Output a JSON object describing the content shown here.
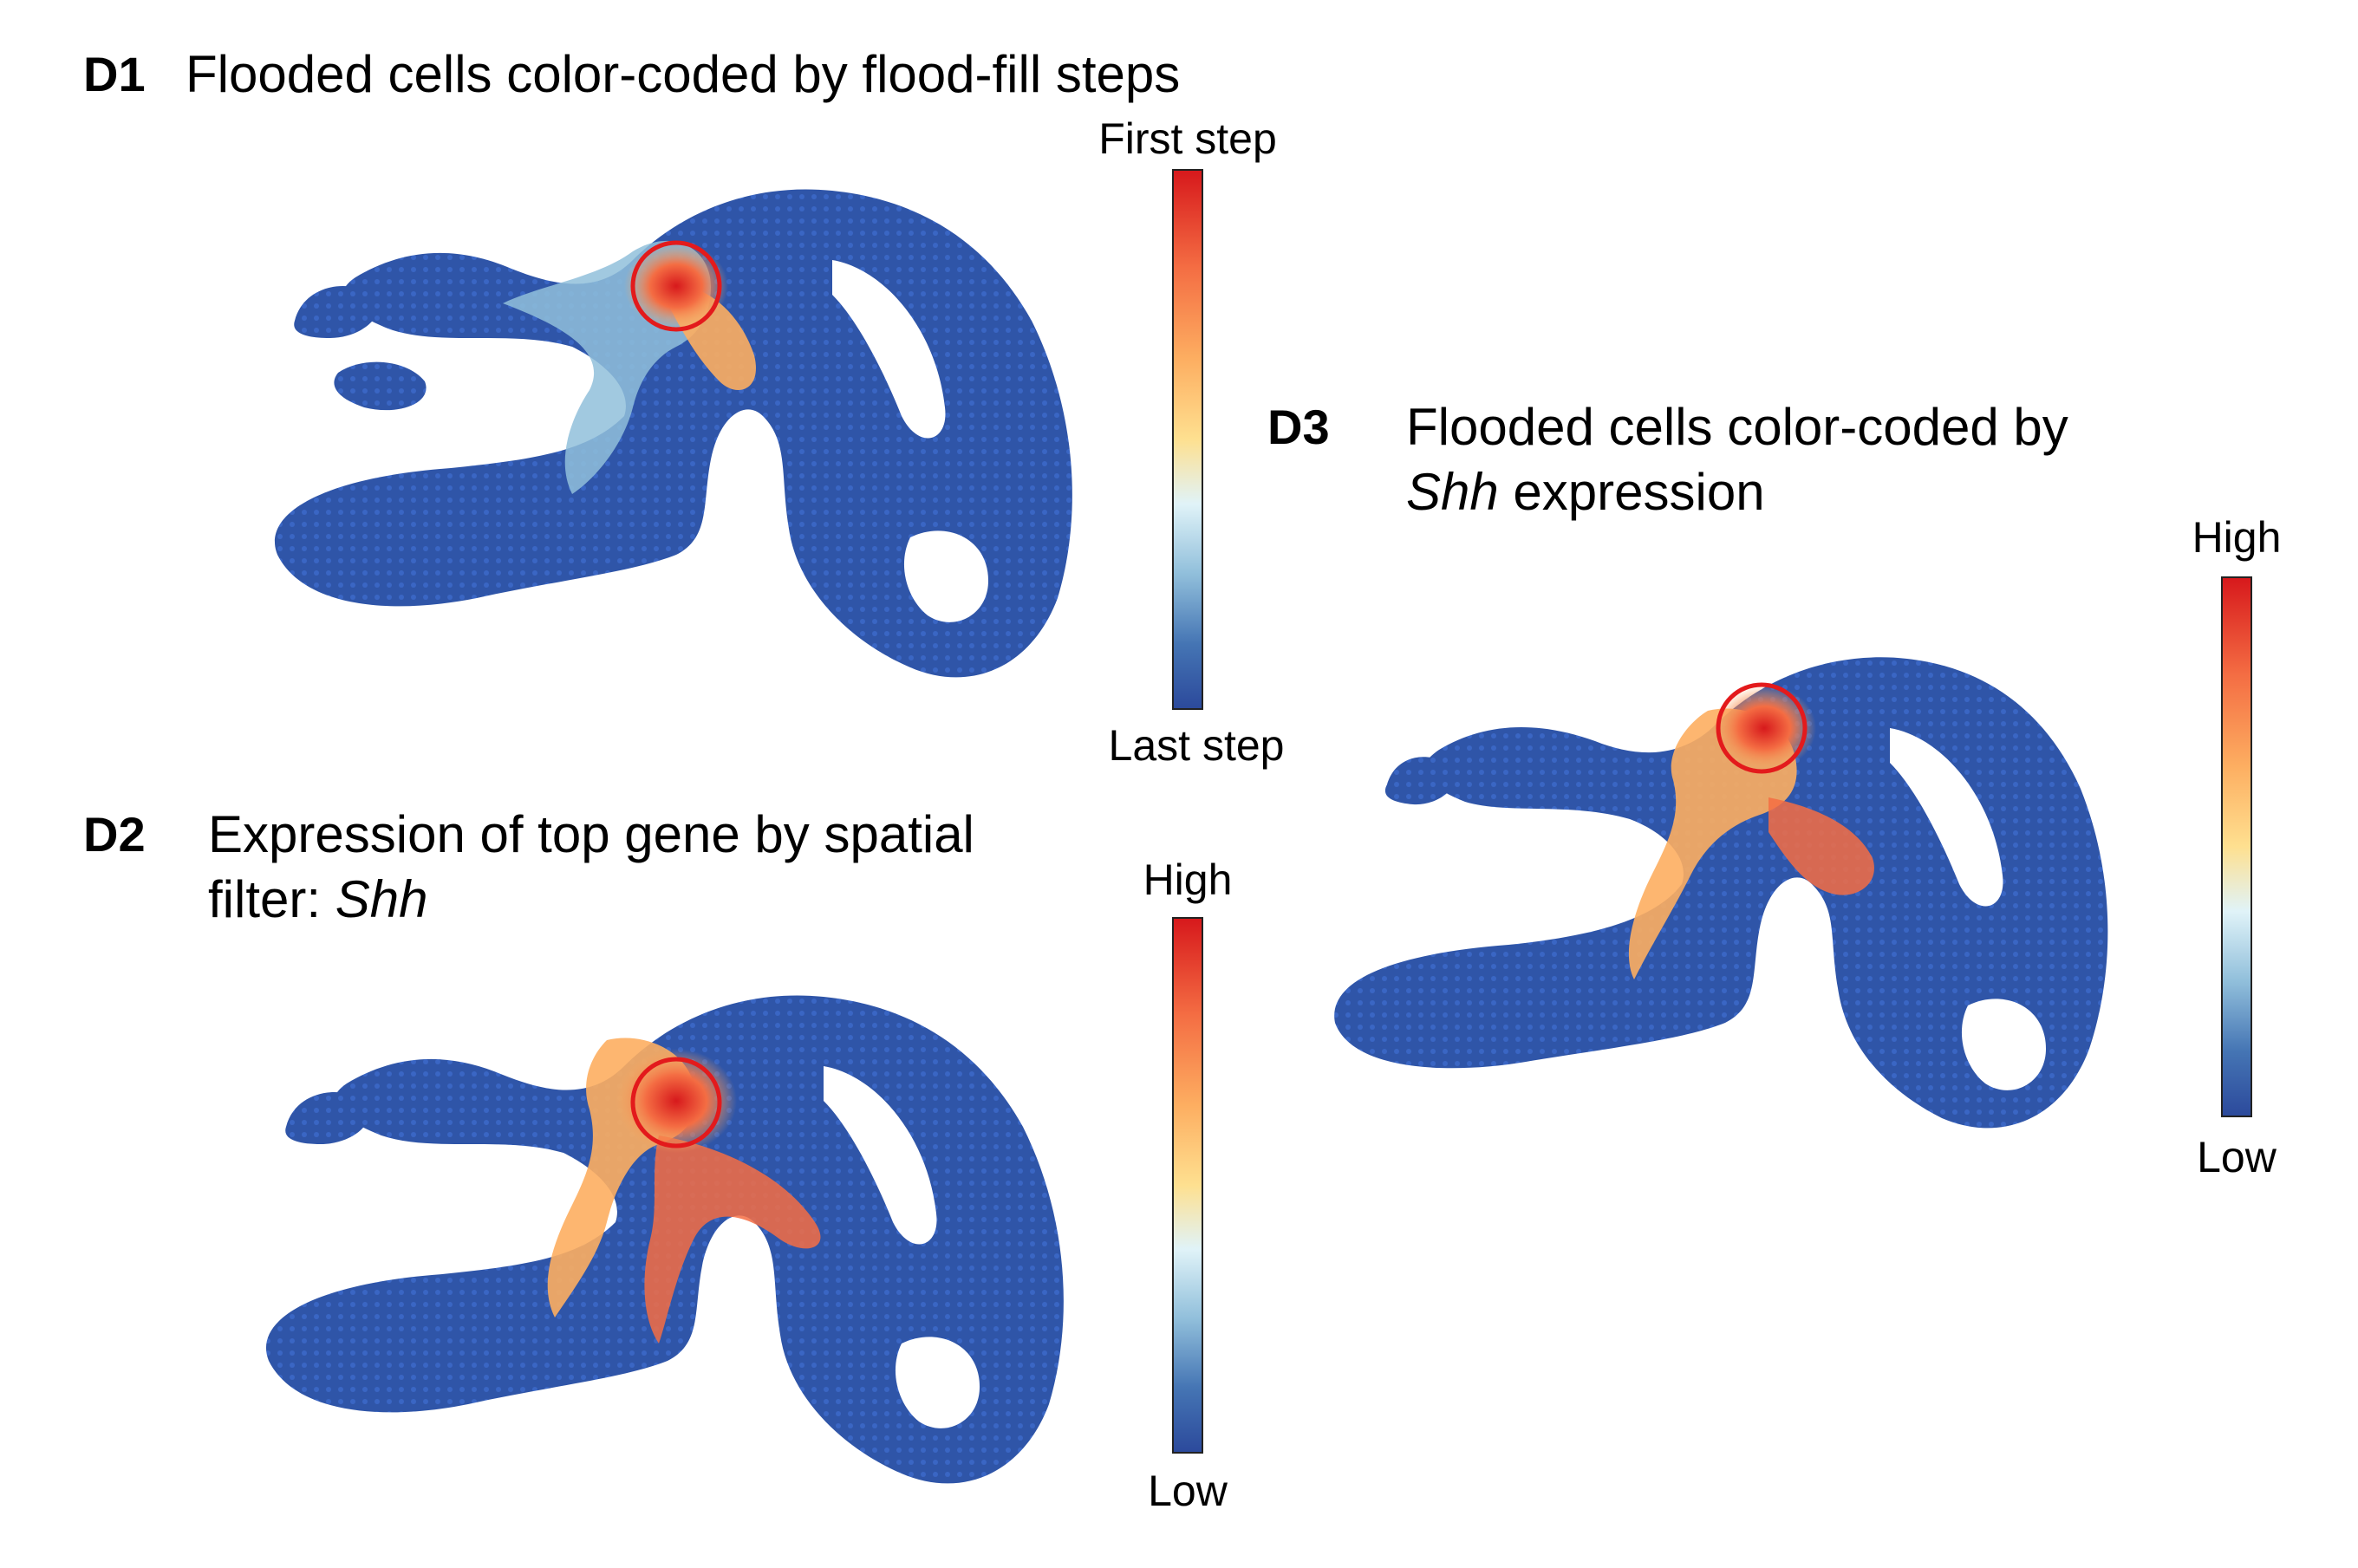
{
  "figure": {
    "colors": {
      "base": "#2f55a8",
      "dot_hi": "#3a66c4",
      "roi_circle": "#e31a1c",
      "high": "#d7191c",
      "mid": "#fee090",
      "low": "#2c4a9c"
    },
    "panels": [
      {
        "id": "D1",
        "label": "D1",
        "title_line1": "Flooded cells color-coded by flood-fill steps",
        "colorbar": {
          "top": "First step",
          "bottom": "Last step"
        }
      },
      {
        "id": "D2",
        "label": "D2",
        "title_line1": "Expression of top gene by spatial",
        "title_line2_prefix": "filter: ",
        "title_line2_italic": "Shh",
        "colorbar": {
          "top": "High",
          "bottom": "Low"
        }
      },
      {
        "id": "D3",
        "label": "D3",
        "title_line1": "Flooded cells color-coded by",
        "title_line2_italic": "Shh",
        "title_line2_suffix": " expression",
        "colorbar": {
          "top": "High",
          "bottom": "Low"
        }
      }
    ]
  }
}
